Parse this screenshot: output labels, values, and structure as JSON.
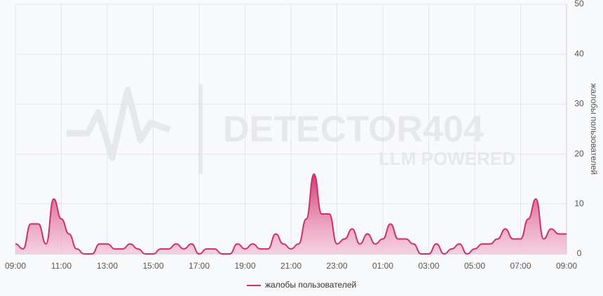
{
  "watermark": {
    "title": "DETECTOR404",
    "subtitle": "LLM POWERED"
  },
  "chart_data": {
    "type": "area",
    "categories": [
      "09:00",
      "09:20",
      "09:40",
      "10:00",
      "10:20",
      "10:40",
      "11:00",
      "11:20",
      "11:40",
      "12:00",
      "12:20",
      "12:40",
      "13:00",
      "13:20",
      "13:40",
      "14:00",
      "14:20",
      "14:40",
      "15:00",
      "15:20",
      "15:40",
      "16:00",
      "16:20",
      "16:40",
      "17:00",
      "17:20",
      "17:40",
      "18:00",
      "18:20",
      "18:40",
      "19:00",
      "19:20",
      "19:40",
      "20:00",
      "20:20",
      "20:40",
      "21:00",
      "21:20",
      "21:40",
      "22:00",
      "22:20",
      "22:40",
      "23:00",
      "23:20",
      "23:40",
      "00:00",
      "00:20",
      "00:40",
      "01:00",
      "01:20",
      "01:40",
      "02:00",
      "02:20",
      "02:40",
      "03:00",
      "03:20",
      "03:40",
      "04:00",
      "04:20",
      "04:40",
      "05:00",
      "05:20",
      "05:40",
      "06:00",
      "06:20",
      "06:40",
      "07:00",
      "07:20",
      "07:40",
      "08:00",
      "08:20",
      "08:40",
      "09:00"
    ],
    "series": [
      {
        "name": "жалобы пользователей",
        "color": "#d0306a",
        "values": [
          2,
          1,
          6,
          6,
          2,
          11,
          7,
          4,
          1,
          0,
          0,
          2,
          2,
          1,
          1,
          2,
          1,
          0,
          0,
          1,
          1,
          2,
          1,
          2,
          0,
          1,
          1,
          0,
          0,
          2,
          1,
          2,
          1,
          1,
          4,
          2,
          1,
          2,
          7,
          16,
          8,
          8,
          2,
          3,
          5,
          2,
          4,
          2,
          3,
          6,
          3,
          3,
          2,
          0,
          0,
          2,
          0,
          1,
          2,
          0,
          1,
          2,
          2,
          3,
          5,
          3,
          3,
          7,
          11,
          3,
          5,
          4,
          4
        ]
      }
    ],
    "y_axis_label": "жалобы пользователей",
    "ylim": [
      0,
      50
    ],
    "yticks": [
      0,
      10,
      20,
      30,
      40,
      50
    ],
    "grid": true,
    "legend": "bottom"
  }
}
